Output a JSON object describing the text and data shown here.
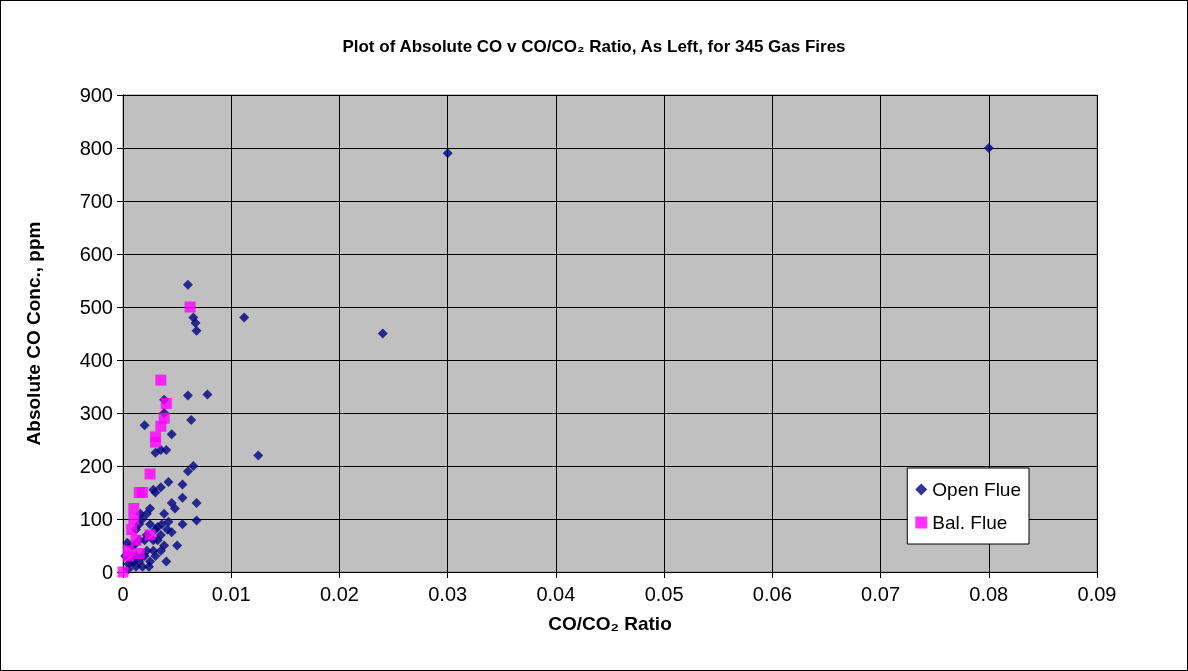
{
  "chart_data": {
    "type": "scatter",
    "title": "Plot of Absolute CO v CO/CO₂ Ratio, As Left, for 345 Gas Fires",
    "xlabel": "CO/CO₂ Ratio",
    "ylabel": "Absolute CO Conc., ppm",
    "xlim": [
      0,
      0.09
    ],
    "xticks": [
      0,
      0.01,
      0.02,
      0.03,
      0.04,
      0.05,
      0.06,
      0.07,
      0.08,
      0.09
    ],
    "ylim": [
      0,
      900
    ],
    "yticks": [
      0,
      100,
      200,
      300,
      400,
      500,
      600,
      700,
      800,
      900
    ],
    "grid": true,
    "legend": "bottom right",
    "series": [
      {
        "name": "Open Flue",
        "color": "#000080",
        "marker": "diamond",
        "x": [
          0.03,
          0.08,
          0.024,
          0.0112,
          0.0125,
          0.006,
          0.0065,
          0.0067,
          0.0068,
          0.006,
          0.0078,
          0.0063,
          0.0038,
          0.0038,
          0.002,
          0.0045,
          0.0035,
          0.004,
          0.003,
          0.0065,
          0.006,
          0.0068,
          0.0068,
          0.0055,
          0.0055,
          0.0048,
          0.0045,
          0.0042,
          0.005,
          0.004,
          0.0045,
          0.0055,
          0.0028,
          0.0035,
          0.003,
          0.0038,
          0.0042,
          0.0032,
          0.0025,
          0.0022,
          0.0018,
          0.0015,
          0.0012,
          0.0008,
          0.0025,
          0.003,
          0.0035,
          0.002,
          0.0015,
          0.001,
          0.0028,
          0.0022,
          0.0018,
          0.0012,
          0.0008,
          0.0005,
          0.0032,
          0.0038,
          0.0025,
          0.002,
          0.0015,
          0.001,
          0.0005,
          0.0035,
          0.0028,
          0.0022,
          0.0016,
          0.0004,
          0.0002,
          0.0012,
          0.0018,
          0.0024,
          0.003,
          0.0036,
          0.0041
        ],
        "values": [
          790,
          800,
          450,
          480,
          220,
          542,
          480,
          470,
          455,
          333,
          335,
          287,
          325,
          300,
          277,
          260,
          230,
          230,
          225,
          200,
          190,
          130,
          97,
          140,
          165,
          120,
          130,
          170,
          50,
          20,
          75,
          90,
          155,
          160,
          150,
          110,
          95,
          85,
          120,
          110,
          100,
          90,
          80,
          50,
          90,
          80,
          70,
          60,
          60,
          50,
          40,
          40,
          30,
          30,
          20,
          15,
          60,
          50,
          20,
          30,
          20,
          20,
          5,
          40,
          60,
          70,
          110,
          55,
          30,
          10,
          10,
          10,
          30,
          90,
          80
        ]
      },
      {
        "name": "Bal. Flue",
        "color": "#ff00ff",
        "marker": "square",
        "x": [
          0.0062,
          0.0035,
          0.004,
          0.0038,
          0.0035,
          0.003,
          0.003,
          0.0025,
          0.0018,
          0.0015,
          0.001,
          0.001,
          0.0008,
          0.0025,
          0.0005,
          0.0015,
          0.0,
          0.0005,
          0.0012
        ],
        "values": [
          500,
          362,
          318,
          290,
          275,
          255,
          245,
          185,
          150,
          150,
          120,
          100,
          80,
          70,
          40,
          35,
          0,
          30,
          60
        ]
      }
    ]
  }
}
